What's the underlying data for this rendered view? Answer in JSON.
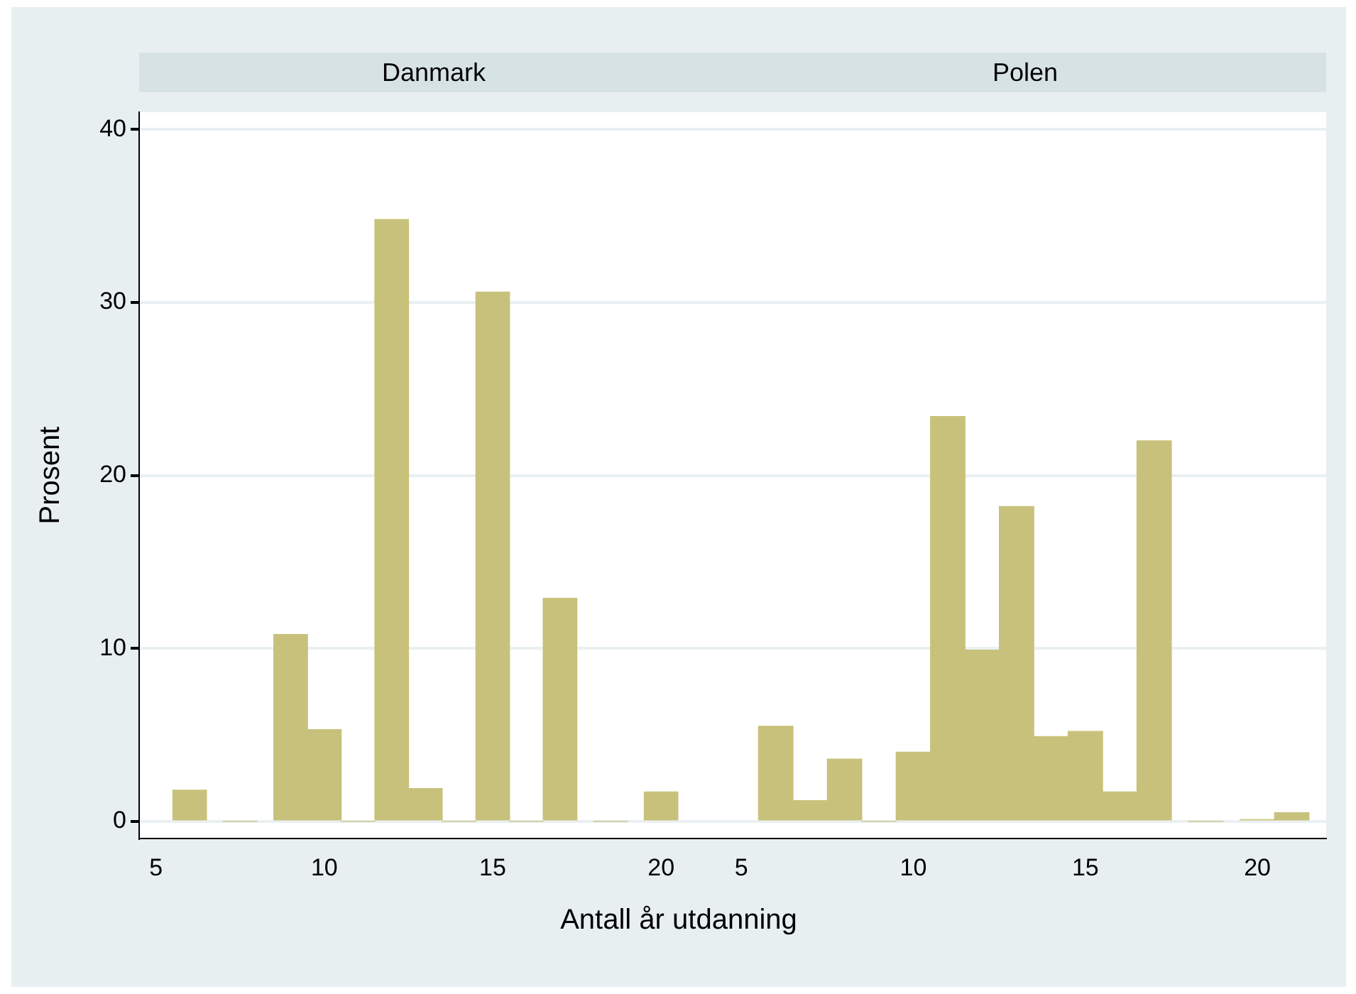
{
  "chart_data": [
    {
      "type": "histogram",
      "title": "Danmark",
      "xlabel": "Antall år utdanning",
      "ylabel": "Prosent",
      "bins": [
        5.5,
        6.5,
        8.5,
        9.5,
        10.5,
        11.5,
        12.5,
        13.5,
        14.5,
        15.5,
        16.5,
        17.5,
        19.5,
        20.5
      ],
      "values": [
        1.8,
        0,
        10.8,
        5.3,
        0,
        34.8,
        1.9,
        0,
        30.6,
        0,
        12.9,
        0,
        1.7
      ],
      "color": "#c8c17b",
      "xlim": [
        4.5,
        22
      ],
      "xticks": [
        5,
        10,
        15,
        20
      ],
      "ylim": [
        -1,
        41
      ],
      "yticks": [
        0,
        10,
        20,
        30,
        40
      ],
      "grid": "y"
    },
    {
      "type": "histogram",
      "title": "Polen",
      "bins": [
        5.5,
        6.5,
        7.5,
        8.5,
        9.5,
        10.5,
        11.5,
        12.5,
        13.5,
        14.5,
        15.5,
        16.5,
        17.5,
        19.5,
        20.5,
        21.5
      ],
      "values": [
        5.5,
        1.2,
        3.6,
        0,
        4.0,
        23.4,
        9.9,
        18.2,
        4.9,
        5.2,
        1.7,
        22.0,
        0,
        0.1,
        0.5
      ],
      "color": "#c8c17b",
      "xlim": [
        4.5,
        22
      ],
      "xticks": [
        5,
        10,
        15,
        20
      ],
      "ylim": [
        -1,
        41
      ],
      "yticks": [
        0,
        10,
        20,
        30,
        40
      ],
      "grid": "y",
      "tick_labels": "x"
    }
  ]
}
